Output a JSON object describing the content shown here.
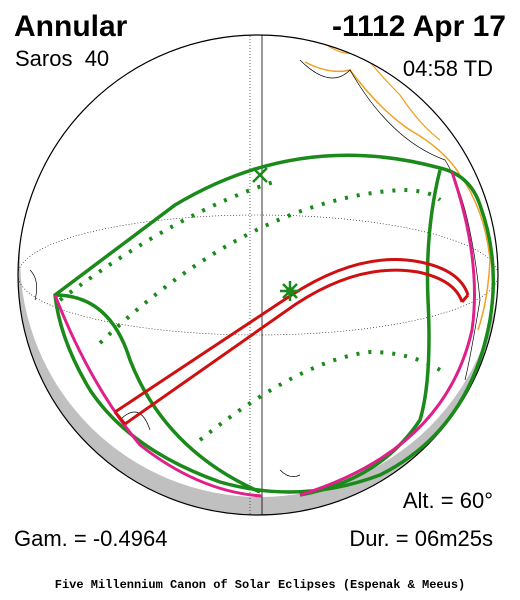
{
  "header": {
    "type": "Annular",
    "date": "-1112 Apr 17",
    "saros": "Saros  40",
    "time": "04:58 TD"
  },
  "stats": {
    "altitude": "Alt. = 60°",
    "gamma": "Gam. = -0.4964",
    "duration": "Dur. = 06m25s"
  },
  "footer": "Five Millennium Canon of Solar Eclipses (Espenak & Meeus)"
}
